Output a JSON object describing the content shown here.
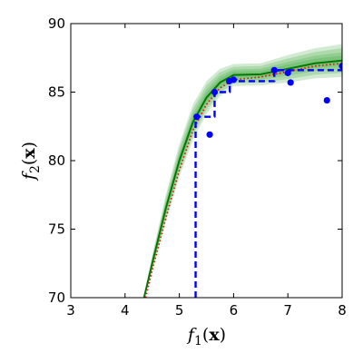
{
  "chart_data": {
    "type": "line",
    "xlabel": {
      "italic": "f",
      "sub": "1",
      "open": "(",
      "bold": "x",
      "close": ")"
    },
    "ylabel": {
      "italic": "f",
      "sub": "2",
      "open": "(",
      "bold": "x",
      "close": ")"
    },
    "xlim": [
      3,
      8
    ],
    "ylim": [
      70,
      90
    ],
    "xticks": [
      "3",
      "4",
      "5",
      "6",
      "7",
      "8"
    ],
    "yticks": [
      "70",
      "75",
      "80",
      "85",
      "90"
    ],
    "grid": false,
    "legend": "none",
    "series": [
      {
        "style": "band",
        "color": "#2ca02c",
        "x": [
          4.35,
          4.5,
          4.75,
          5.0,
          5.25,
          5.5,
          5.75,
          6.0,
          6.5,
          7.0,
          7.5,
          8.0
        ],
        "y": [
          70.0,
          72.5,
          76.5,
          80.0,
          82.8,
          84.6,
          85.7,
          86.25,
          86.3,
          86.7,
          87.1,
          87.3
        ],
        "spread": [
          0.2,
          0.6,
          1.0,
          1.2,
          1.3,
          1.2,
          1.0,
          0.8,
          0.8,
          1.0,
          1.1,
          1.2
        ]
      },
      {
        "style": "solid",
        "color": "#007a00",
        "x": [
          4.35,
          4.5,
          4.75,
          5.0,
          5.25,
          5.5,
          5.75,
          6.0,
          6.5,
          7.0,
          7.5,
          8.0
        ],
        "y": [
          70.0,
          72.5,
          76.5,
          80.0,
          82.8,
          84.6,
          85.7,
          86.25,
          86.3,
          86.7,
          87.1,
          87.3
        ]
      },
      {
        "style": "dotted",
        "color": "#ff0000",
        "x": [
          4.38,
          4.5,
          4.75,
          5.0,
          5.25,
          5.5,
          5.75,
          6.0,
          6.5,
          7.0,
          7.5,
          8.0
        ],
        "y": [
          70.0,
          72.0,
          75.8,
          79.3,
          82.2,
          84.1,
          85.3,
          85.9,
          86.1,
          86.5,
          86.9,
          87.1
        ]
      },
      {
        "style": "dashed-step",
        "color": "#0000ff",
        "x": [
          5.3,
          5.3,
          5.65,
          5.65,
          5.93,
          5.93,
          6.75,
          6.75,
          7.0,
          7.0,
          8.0
        ],
        "y": [
          70.0,
          83.2,
          83.2,
          85.0,
          85.0,
          85.8,
          85.8,
          86.6,
          86.6,
          86.6,
          86.6
        ]
      },
      {
        "style": "points",
        "color": "#0000ff",
        "x": [
          5.32,
          5.56,
          5.65,
          5.92,
          6.0,
          6.75,
          7.0,
          7.05,
          7.72,
          8.0
        ],
        "y": [
          83.2,
          81.9,
          85.0,
          85.8,
          85.9,
          86.6,
          86.4,
          85.7,
          84.4,
          86.9
        ]
      }
    ]
  }
}
